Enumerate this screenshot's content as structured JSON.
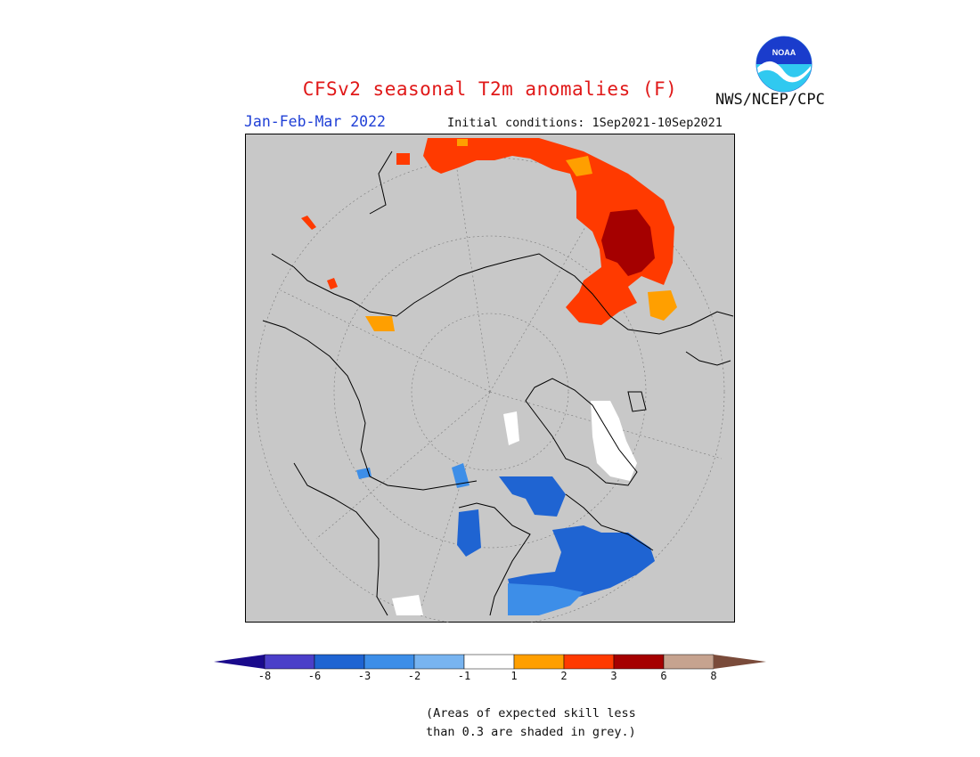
{
  "title": "CFSv2 seasonal T2m anomalies (F)",
  "season": "Jan-Feb-Mar 2022",
  "initial_conditions": "Initial conditions: 1Sep2021-10Sep2021",
  "agency": "NWS/NCEP/CPC",
  "logo_text": "NOAA",
  "legend": {
    "ticks": [
      "-8",
      "-6",
      "-3",
      "-2",
      "-1",
      "1",
      "2",
      "3",
      "6",
      "8"
    ],
    "colors": [
      "#1a0a8c",
      "#4b3fc9",
      "#1f64d2",
      "#3d8ee8",
      "#78b4f0",
      "#ffffff",
      "#ff9f00",
      "#ff3a00",
      "#a50000",
      "#c6a38f",
      "#7a4b3a"
    ],
    "footnote_line1": "(Areas of expected skill less",
    "footnote_line2": "than 0.3 are shaded in grey.)"
  },
  "map_colors": {
    "background": "#c8c8c8",
    "no_skill": "#c8c8c8",
    "orange": "#ff9f00",
    "red_orange": "#ff3a00",
    "dark_red": "#a50000",
    "white": "#ffffff",
    "light_blue": "#3d8ee8",
    "blue": "#1f64d2"
  }
}
